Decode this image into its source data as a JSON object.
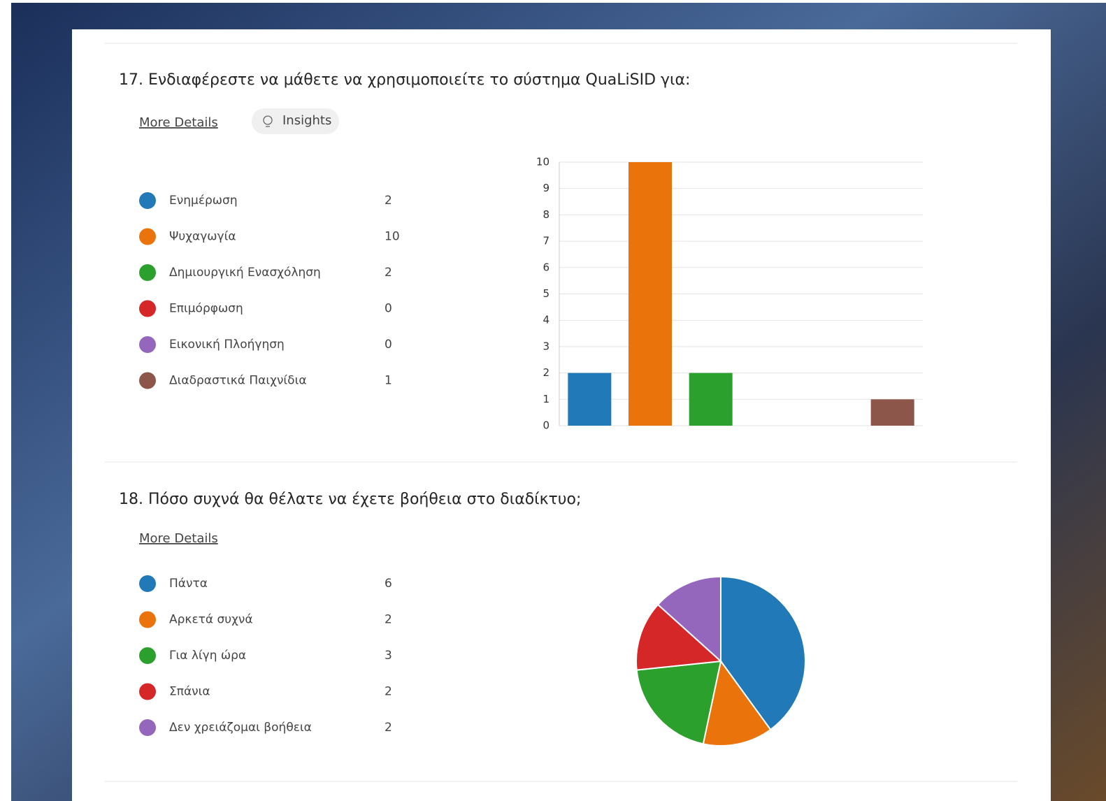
{
  "chart_data": [
    {
      "type": "bar",
      "title": "17.  Ενδιαφέρεστε να μάθετε να χρησιμοποιείτε το σύστημα QuaLiSID για:",
      "link": "More Details",
      "insights": "Insights",
      "categories": [
        "Ενημέρωση",
        "Ψυχαγωγία",
        "Δημιουργική Ενασχόληση",
        "Επιμόρφωση",
        "Εικονική Πλοήγηση",
        "Διαδραστικά Παιχνίδια"
      ],
      "values": [
        2,
        10,
        2,
        0,
        0,
        1
      ],
      "colors": [
        "#2279b8",
        "#ea730b",
        "#2ca02c",
        "#d62728",
        "#9467bd",
        "#8c564b"
      ],
      "ylim": [
        0,
        10
      ],
      "yticks": [
        0,
        1,
        2,
        3,
        4,
        5,
        6,
        7,
        8,
        9,
        10
      ],
      "grid": true
    },
    {
      "type": "pie",
      "title": "18.  Πόσο συχνά θα θέλατε να έχετε βοήθεια στο διαδίκτυο;",
      "link": "More Details",
      "categories": [
        "Πάντα",
        "Αρκετά συχνά",
        "Για λίγη ώρα",
        "Σπάνια",
        "Δεν χρειάζομαι βοήθεια"
      ],
      "values": [
        6,
        2,
        3,
        2,
        2
      ],
      "colors": [
        "#2279b8",
        "#ea730b",
        "#2ca02c",
        "#d62728",
        "#9467bd"
      ]
    }
  ]
}
